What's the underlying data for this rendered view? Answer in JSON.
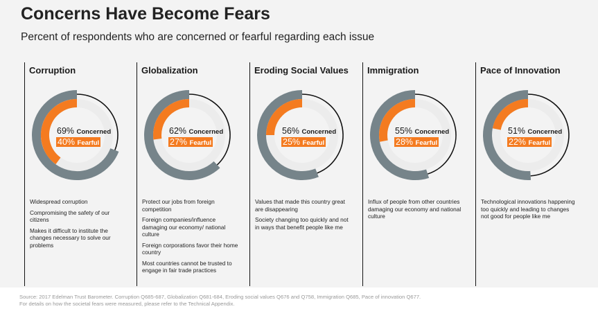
{
  "title": "Concerns Have Become Fears",
  "subtitle": "Percent of respondents who are concerned or fearful regarding each issue",
  "colors": {
    "concerned": "#76848a",
    "fearful": "#f47b20",
    "remaining": "#111111",
    "track": "#ececec"
  },
  "concerned_word": "Concerned",
  "fearful_word": "Fearful",
  "chart_data": {
    "type": "donut",
    "categories": [
      "Corruption",
      "Globalization",
      "Eroding Social Values",
      "Immigration",
      "Pace of Innovation"
    ],
    "series": [
      {
        "name": "Concerned",
        "values": [
          69,
          62,
          56,
          55,
          51
        ]
      },
      {
        "name": "Fearful",
        "values": [
          40,
          27,
          25,
          28,
          22
        ]
      }
    ]
  },
  "panels": [
    {
      "title": "Corruption",
      "concerned": "69%",
      "fearful": "40%",
      "notes": [
        "Widespread corruption",
        "Compromising the safety of our citizens",
        "Makes it difficult to institute the changes necessary to solve our problems"
      ]
    },
    {
      "title": "Globalization",
      "concerned": "62%",
      "fearful": "27%",
      "notes": [
        "Protect our jobs from foreign competition",
        "Foreign companies/influence damaging our economy/ national culture",
        "Foreign corporations favor their home country",
        "Most countries cannot be trusted to engage in fair trade practices"
      ]
    },
    {
      "title": "Eroding Social Values",
      "concerned": "56%",
      "fearful": "25%",
      "notes": [
        "Values that made this country great are disappearing",
        "Society changing too quickly and not in ways that benefit people like me"
      ]
    },
    {
      "title": "Immigration",
      "concerned": "55%",
      "fearful": "28%",
      "notes": [
        "Influx of people from other countries damaging our economy and national culture"
      ]
    },
    {
      "title": "Pace of Innovation",
      "concerned": "51%",
      "fearful": "22%",
      "notes": [
        "Technological innovations happening too quickly and leading to changes not good for people like me"
      ]
    }
  ],
  "source": "Source: 2017 Edelman Trust Barometer.  Corruption Q685-687, Globalization Q681-684, Eroding social values Q676 and Q758, Immigration  Q685, Pace of innovation Q677.",
  "source_note": "For details on  how the societal fears were measured, please refer to the Technical Appendix."
}
